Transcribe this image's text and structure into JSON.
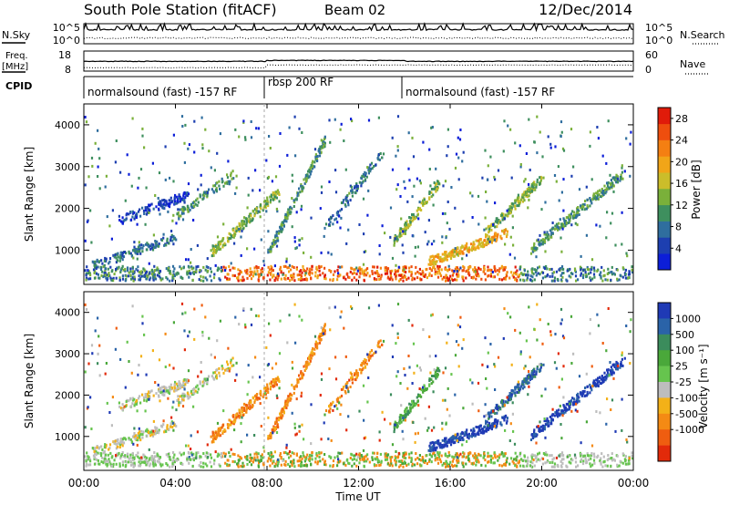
{
  "header": {
    "station": "South Pole Station (fitACF)",
    "beam": "Beam 02",
    "date": "12/Dec/2014"
  },
  "noise_panel": {
    "left_label": "N.Sky",
    "left_ticks": [
      "10^5",
      "10^0"
    ],
    "right_label": "N.Search",
    "right_ticks": [
      "10^5",
      "10^0"
    ]
  },
  "freq_panel": {
    "left_label_1": "Freq.",
    "left_label_2": "[MHz]",
    "left_ticks": [
      "18",
      "8"
    ],
    "right_label": "Nave",
    "right_ticks": [
      "60",
      "0"
    ]
  },
  "cpid": {
    "label": "CPID",
    "segments": [
      {
        "label": "normalsound (fast) -157 RF",
        "start_hour": 0,
        "end_hour": 8
      },
      {
        "label": "rbsp 200 RF",
        "start_hour": 8,
        "end_hour": 14
      },
      {
        "label": "normalsound (fast) -157 RF",
        "start_hour": 14,
        "end_hour": 24
      }
    ]
  },
  "chart_data": [
    {
      "type": "heatmap",
      "name": "power",
      "ylabel": "Slant Range [km]",
      "xlabel": "Time UT",
      "x_tick_labels": [
        "00:00",
        "04:00",
        "08:00",
        "12:00",
        "16:00",
        "20:00",
        "00:00"
      ],
      "x_ticks_hours": [
        0,
        4,
        8,
        12,
        16,
        20,
        24
      ],
      "xlim_hours": [
        0,
        24
      ],
      "ylim_km": [
        180,
        4500
      ],
      "y_ticks": [
        1000,
        2000,
        3000,
        4000
      ],
      "y_tick_labels": [
        "1000",
        "2000",
        "3000",
        "4000"
      ],
      "colorbar": {
        "label": "Power [dB]",
        "tick_labels": [
          "4",
          "8",
          "12",
          "16",
          "20",
          "24",
          "28"
        ],
        "tick_values": [
          4,
          8,
          12,
          16,
          20,
          24,
          28
        ],
        "range": [
          0,
          30
        ],
        "colors": [
          "#0c1ed8",
          "#1d3fb0",
          "#2f6e9e",
          "#3e8f5e",
          "#7ab03a",
          "#cbbd2a",
          "#f1a518",
          "#f47f12",
          "#ee4e0e",
          "#e01b0a"
        ]
      }
    },
    {
      "type": "heatmap",
      "name": "velocity",
      "ylabel": "Slant Range [km]",
      "xlabel": "Time UT",
      "x_tick_labels": [
        "00:00",
        "04:00",
        "08:00",
        "12:00",
        "16:00",
        "20:00",
        "00:00"
      ],
      "x_ticks_hours": [
        0,
        4,
        8,
        12,
        16,
        20,
        24
      ],
      "xlim_hours": [
        0,
        24
      ],
      "ylim_km": [
        180,
        4500
      ],
      "y_ticks": [
        1000,
        2000,
        3000,
        4000
      ],
      "y_tick_labels": [
        "1000",
        "2000",
        "3000",
        "4000"
      ],
      "colorbar": {
        "label": "Velocity [m s⁻¹]",
        "tick_labels": [
          "1000",
          "500",
          "100",
          "25",
          "-25",
          "-100",
          "-500",
          "-1000"
        ],
        "bands": [
          "#1f3ab5",
          "#2a63a8",
          "#3b8c5c",
          "#4aa83a",
          "#66c44e",
          "#bdbdbd",
          "#f3b118",
          "#f48a14",
          "#ef5d10",
          "#e22a0a"
        ]
      }
    }
  ]
}
